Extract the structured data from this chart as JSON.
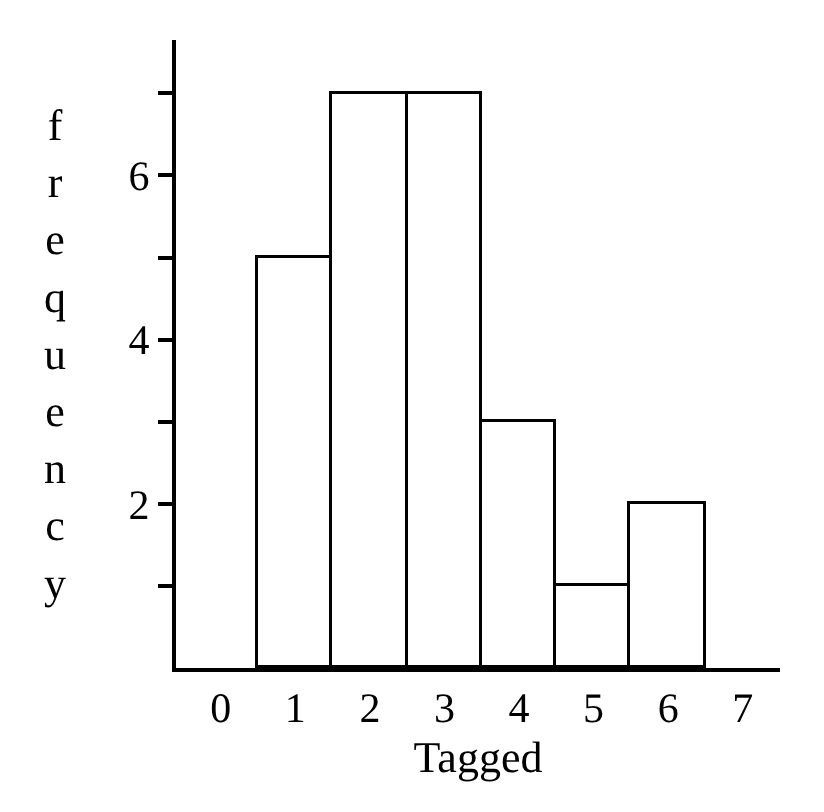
{
  "chart_data": {
    "type": "histogram",
    "xlabel": "Tagged",
    "ylabel": "frequency",
    "bins": [
      0.5,
      1.5,
      2.5,
      3.5,
      4.5,
      5.5,
      6.5
    ],
    "values": [
      5,
      7,
      7,
      3,
      1,
      2
    ],
    "color": "#ffffff",
    "xlim": [
      -0.6,
      7.5
    ],
    "xticks": [
      0,
      1,
      2,
      3,
      4,
      5,
      6,
      7
    ],
    "ylim": [
      0,
      7.65
    ],
    "yticks": [
      {
        "value": 1,
        "label": null
      },
      2,
      {
        "value": 3,
        "label": null
      },
      4,
      {
        "value": 5,
        "label": null
      },
      6,
      {
        "value": 7,
        "label": null
      }
    ]
  }
}
